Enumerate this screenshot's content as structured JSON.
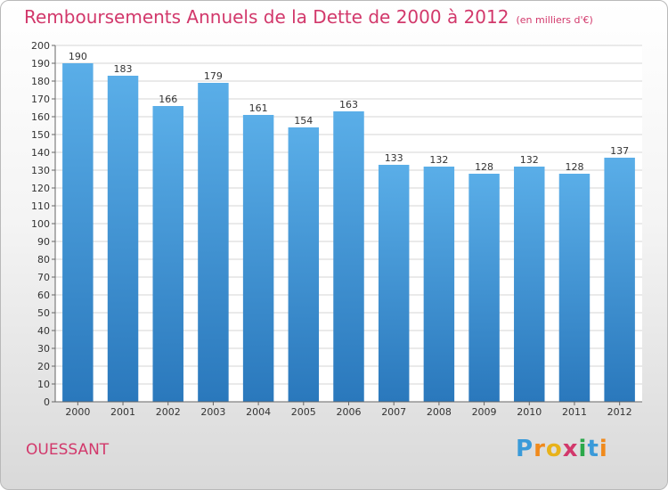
{
  "header": {
    "title": "Remboursements Annuels de la Dette de 2000 à 2012",
    "subtitle": "(en milliers d'€)"
  },
  "footer": {
    "location": "OUESSANT",
    "brand": "Proxiti"
  },
  "colors": {
    "bar_top": "#5aaee8",
    "bar_bottom": "#2a78bc",
    "title": "#d2386b",
    "grid": "#d6d6d6"
  },
  "chart_data": {
    "type": "bar",
    "title": "Remboursements Annuels de la Dette de 2000 à 2012",
    "subtitle": "(en milliers d'€)",
    "xlabel": "",
    "ylabel": "",
    "categories": [
      "2000",
      "2001",
      "2002",
      "2003",
      "2004",
      "2005",
      "2006",
      "2007",
      "2008",
      "2009",
      "2010",
      "2011",
      "2012"
    ],
    "values": [
      190,
      183,
      166,
      179,
      161,
      154,
      163,
      133,
      132,
      128,
      132,
      128,
      137
    ],
    "ylim": [
      0,
      200
    ],
    "ytick_step": 10,
    "grid": true,
    "legend": "none"
  }
}
